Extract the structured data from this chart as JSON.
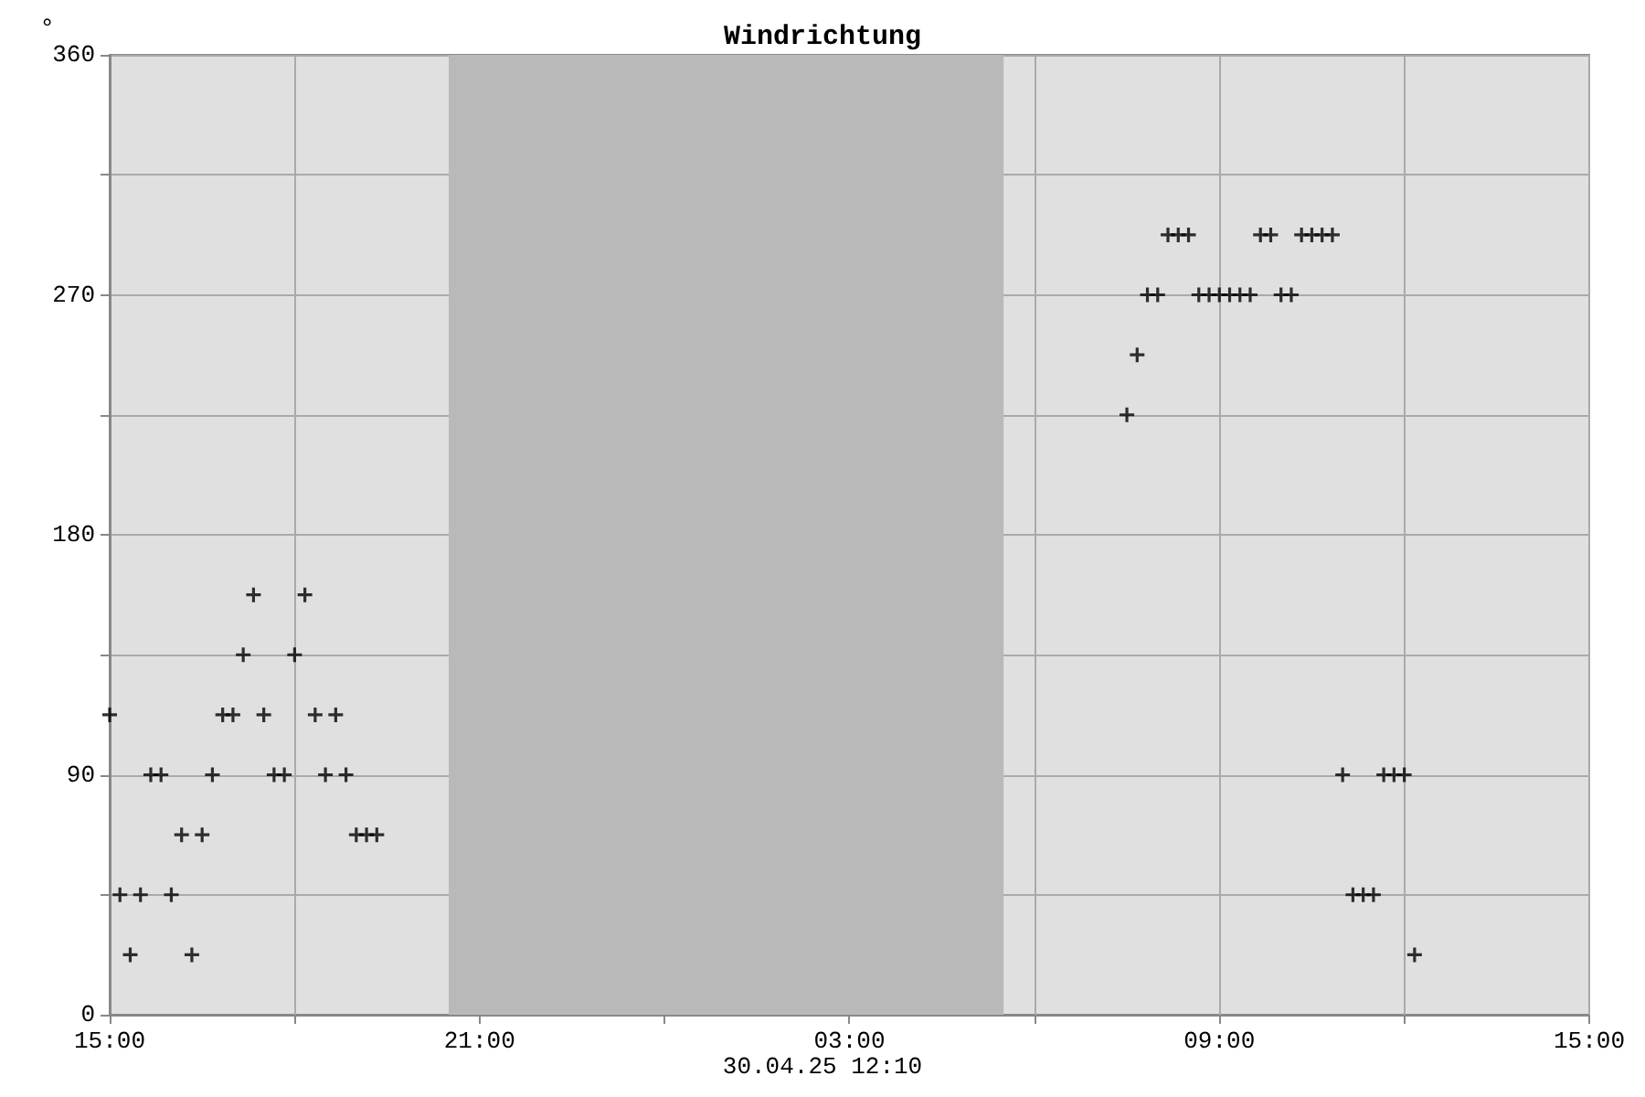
{
  "chart_data": {
    "type": "scatter",
    "title": "Windrichtung",
    "ylabel": "°",
    "annotations": [
      "30.04.25 12:10"
    ],
    "series": [
      {
        "color": "#000000",
        "x": [
          "--04-29T15:00",
          "--04-29T15:10",
          "--04-29T15:20",
          "--04-29T15:30",
          "--04-29T15:40",
          "--04-29T15:50",
          "--04-29T16:00",
          "--04-29T16:10",
          "--04-29T16:20",
          "--04-29T16:30",
          "--04-29T16:40",
          "--04-29T16:50",
          "--04-29T17:00",
          "--04-29T17:10",
          "--04-29T17:20",
          "--04-29T17:30",
          "--04-29T17:40",
          "--04-29T17:50",
          "--04-29T18:00",
          "--04-29T18:10",
          "--04-29T18:20",
          "--04-29T18:30",
          "--04-29T18:40",
          "--04-29T18:50",
          "--04-29T19:00",
          "--04-29T19:10",
          "--04-29T19:20"
        ],
        "values": [
          112.5,
          45,
          22.5,
          45,
          90,
          90,
          45,
          67.5,
          22.5,
          67.5,
          90,
          112.5,
          112.5,
          135,
          157.5,
          112.5,
          90,
          90,
          135,
          157.5,
          112.5,
          90,
          112.5,
          90,
          67.5,
          67.5,
          67.5
        ]
      },
      {
        "color": "#000000",
        "x": [
          "--04-30T07:30",
          "--04-30T07:40",
          "--04-30T07:50",
          "--04-30T08:00",
          "--04-30T08:10",
          "--04-30T08:20",
          "--04-30T08:30",
          "--04-30T08:40",
          "--04-30T08:50",
          "--04-30T09:00",
          "--04-30T09:10",
          "--04-30T09:20",
          "--04-30T09:30",
          "--04-30T09:40",
          "--04-30T09:50",
          "--04-30T10:00",
          "--04-30T10:10",
          "--04-30T10:20",
          "--04-30T10:30",
          "--04-30T10:40",
          "--04-30T10:50",
          "--04-30T11:00",
          "--04-30T11:10",
          "--04-30T11:20",
          "--04-30T11:30",
          "--04-30T11:40",
          "--04-30T11:50",
          "--04-30T12:00",
          "--04-30T12:10"
        ],
        "values": [
          225,
          247.5,
          270,
          270,
          292.5,
          292.5,
          292.5,
          270,
          270,
          270,
          270,
          270,
          270,
          292.5,
          292.5,
          270,
          270,
          292.5,
          292.5,
          292.5,
          292.5,
          90,
          45,
          45,
          45,
          90,
          90,
          90,
          22.5
        ]
      }
    ],
    "xlim": [
      "--04-29T15:00",
      "--04-30T15:00"
    ],
    "xticks": [
      {
        "value": "--04-29T15:00",
        "label": "15:00"
      },
      {
        "value": "--04-29T18:00",
        "label": null
      },
      {
        "value": "--04-29T21:00",
        "label": "21:00"
      },
      {
        "value": "--04-30T00:00",
        "label": null
      },
      {
        "value": "--04-30T03:00",
        "label": "03:00"
      },
      {
        "value": "--04-30T06:00",
        "label": null
      },
      {
        "value": "--04-30T09:00",
        "label": "09:00"
      },
      {
        "value": "--04-30T12:00",
        "label": null
      },
      {
        "value": "--04-30T15:00",
        "label": "15:00"
      }
    ],
    "ylim": [
      0,
      360
    ],
    "yticks": [
      0,
      {
        "value": 45,
        "label": null
      },
      90,
      {
        "value": 135,
        "label": null
      },
      180,
      {
        "value": 225,
        "label": null
      },
      270,
      {
        "value": 315,
        "label": null
      },
      360
    ],
    "bands": [
      {
        "axis": "x",
        "from": "--04-29T20:30",
        "to": "--04-30T05:30",
        "color": "#b9b9b9"
      }
    ],
    "grid": true,
    "marker": "cross"
  }
}
